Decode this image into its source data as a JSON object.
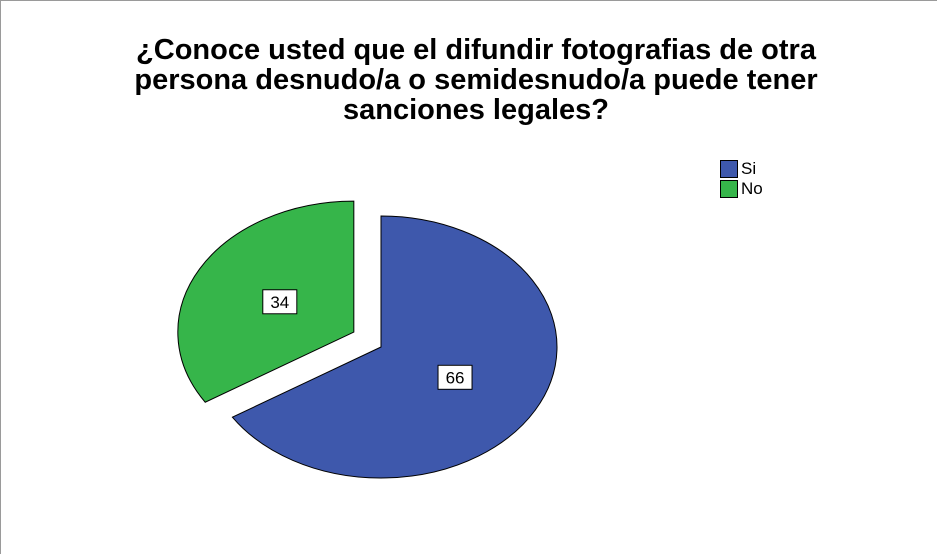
{
  "chart_data": {
    "type": "pie",
    "title": "¿Conoce usted que el difundir fotografias de otra\npersona desnudo/a o semidesnudo/a puede tener\nsanciones legales?",
    "categories": [
      "Si",
      "No"
    ],
    "values": [
      66,
      34
    ],
    "data_labels": [
      "66",
      "34"
    ],
    "colors": [
      "#3e58ac",
      "#36b54a"
    ],
    "exploded": [
      "No"
    ],
    "legend_position": "top-right"
  }
}
